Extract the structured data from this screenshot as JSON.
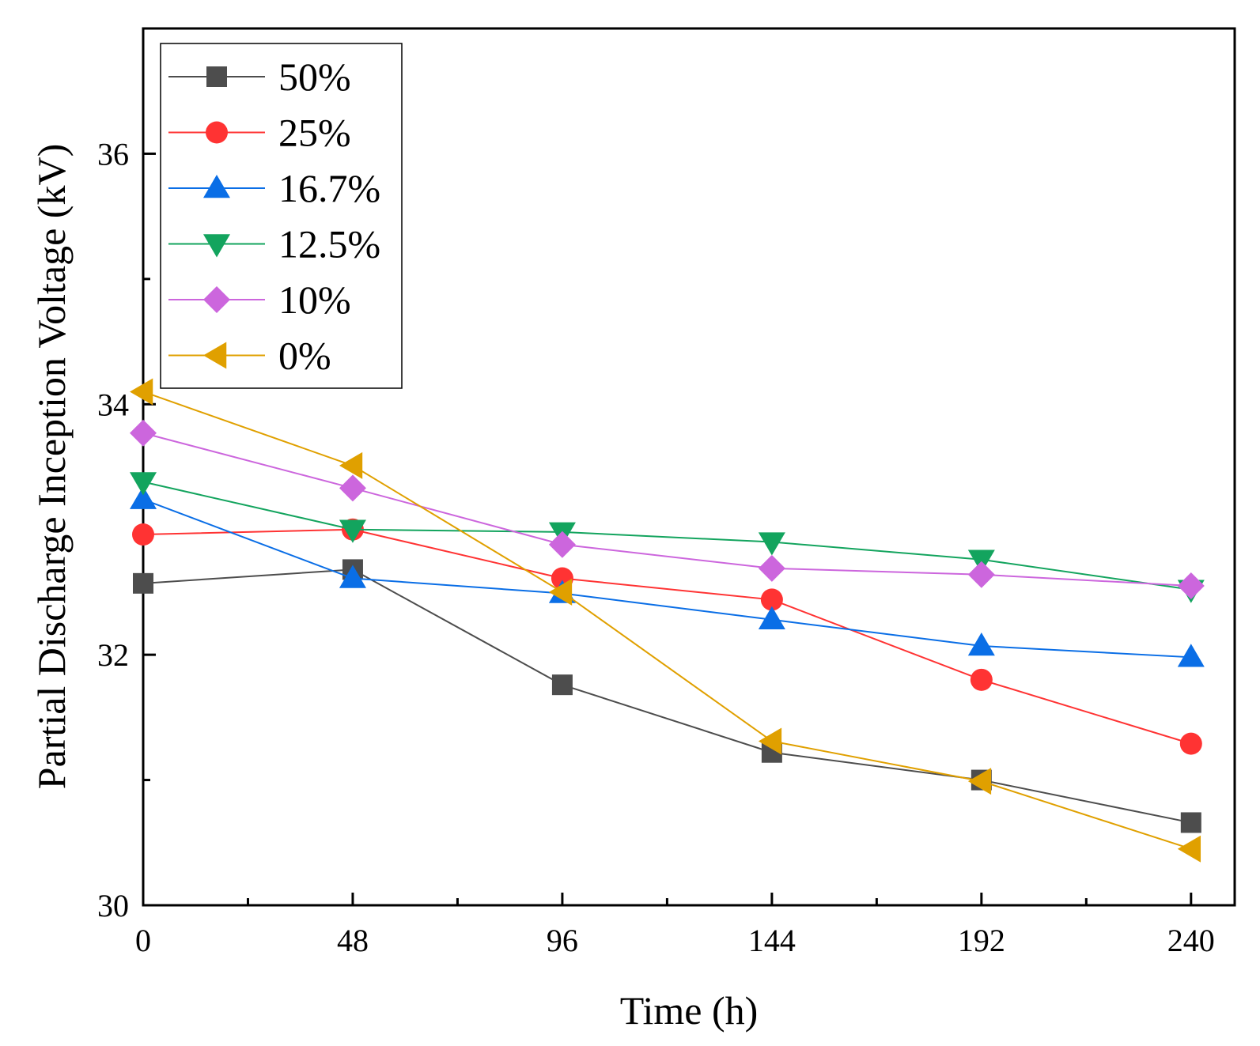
{
  "chart_data": {
    "type": "line",
    "xlabel": "Time (h)",
    "ylabel": "Partial Discharge Inception Voltage (kV)",
    "x": [
      0,
      48,
      96,
      144,
      192,
      240
    ],
    "xlim": [
      0,
      250
    ],
    "ylim": [
      30,
      37
    ],
    "x_ticks": [
      0,
      48,
      96,
      144,
      192,
      240
    ],
    "y_ticks": [
      30,
      32,
      34,
      36
    ],
    "legend_position": "top-left",
    "grid": false,
    "series": [
      {
        "name": "50%",
        "color": "#4d4d4d",
        "marker": "square",
        "values": [
          32.57,
          32.68,
          31.76,
          31.22,
          31.0,
          30.66
        ]
      },
      {
        "name": "25%",
        "color": "#ff3333",
        "marker": "circle",
        "values": [
          32.96,
          33.0,
          32.61,
          32.44,
          31.8,
          31.29
        ]
      },
      {
        "name": "16.7%",
        "color": "#0a6ee6",
        "marker": "triangle-up",
        "values": [
          33.24,
          32.61,
          32.49,
          32.28,
          32.07,
          31.98
        ]
      },
      {
        "name": "12.5%",
        "color": "#13a45e",
        "marker": "triangle-down",
        "values": [
          33.38,
          33.0,
          32.98,
          32.9,
          32.76,
          32.52
        ]
      },
      {
        "name": "10%",
        "color": "#cc66dd",
        "marker": "diamond",
        "values": [
          33.77,
          33.33,
          32.88,
          32.69,
          32.64,
          32.55
        ]
      },
      {
        "name": "0%",
        "color": "#e0a000",
        "marker": "triangle-left",
        "values": [
          34.1,
          33.51,
          32.5,
          31.31,
          30.99,
          30.45
        ]
      }
    ]
  }
}
